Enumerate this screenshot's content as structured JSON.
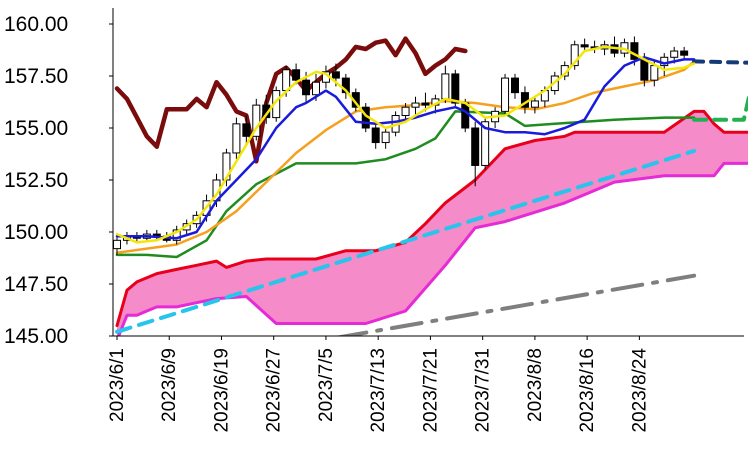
{
  "chart_data": {
    "type": "candlestick-ichimoku",
    "ylim": [
      145.0,
      160.0
    ],
    "y_ticks": [
      "160.00",
      "157.50",
      "155.00",
      "152.50",
      "150.00",
      "147.50",
      "145.00"
    ],
    "x_tick_labels": [
      "2023/6/1",
      "2023/6/9",
      "2023/6/19",
      "2023/6/27",
      "2023/7/5",
      "2023/7/13",
      "2023/7/21",
      "2023/7/31",
      "2023/8/8",
      "2023/8/16",
      "2023/8/24"
    ],
    "grid": false,
    "legend": "none",
    "colors": {
      "cloud_fill": "#f58bc8",
      "senkou_a": "#e8001a",
      "senkou_b": "#e62ad6",
      "chikou": "#7b0c0c",
      "ma_fast": "#f5e60a",
      "tenkan": "#1a1adc",
      "ma_mid": "#f5a01e",
      "kijun": "#1e8c1e",
      "trend_up": "#27c4ec",
      "trend_low": "#7f7f7f",
      "proj_blue": "#163a78",
      "proj_green": "#22b050"
    },
    "candles": [
      [
        0,
        149.2,
        149.8,
        148.9,
        149.6
      ],
      [
        1,
        149.6,
        150.0,
        149.4,
        149.8
      ],
      [
        2,
        149.8,
        150.0,
        149.5,
        149.7
      ],
      [
        3,
        149.7,
        150.1,
        149.5,
        149.9
      ],
      [
        4,
        149.9,
        150.1,
        149.6,
        149.8
      ],
      [
        5,
        149.8,
        150.0,
        149.5,
        149.6
      ],
      [
        6,
        149.6,
        150.3,
        149.4,
        150.1
      ],
      [
        7,
        150.1,
        150.6,
        149.8,
        150.4
      ],
      [
        8,
        150.4,
        151.0,
        150.2,
        150.8
      ],
      [
        9,
        150.8,
        151.8,
        150.5,
        151.5
      ],
      [
        10,
        151.5,
        152.8,
        151.2,
        152.5
      ],
      [
        11,
        152.5,
        154.0,
        152.2,
        153.8
      ],
      [
        12,
        153.8,
        155.5,
        153.5,
        155.2
      ],
      [
        13,
        155.2,
        155.6,
        154.2,
        154.6
      ],
      [
        14,
        154.6,
        156.4,
        154.4,
        156.1
      ],
      [
        15,
        156.1,
        156.6,
        155.2,
        155.5
      ],
      [
        16,
        155.5,
        157.0,
        155.3,
        156.8
      ],
      [
        17,
        156.8,
        158.0,
        156.5,
        157.8
      ],
      [
        18,
        157.8,
        158.1,
        157.1,
        157.3
      ],
      [
        19,
        157.3,
        157.7,
        156.2,
        156.6
      ],
      [
        20,
        156.6,
        157.6,
        156.3,
        157.2
      ],
      [
        21,
        157.2,
        158.0,
        156.9,
        157.7
      ],
      [
        22,
        157.7,
        158.1,
        157.0,
        157.4
      ],
      [
        23,
        157.4,
        157.6,
        156.4,
        156.7
      ],
      [
        24,
        156.7,
        156.9,
        155.8,
        156.0
      ],
      [
        25,
        156.0,
        156.2,
        154.8,
        155.0
      ],
      [
        26,
        155.0,
        155.2,
        154.0,
        154.3
      ],
      [
        27,
        154.3,
        155.0,
        154.0,
        154.8
      ],
      [
        28,
        154.8,
        155.8,
        154.6,
        155.6
      ],
      [
        29,
        155.6,
        156.2,
        155.3,
        156.0
      ],
      [
        30,
        156.0,
        156.5,
        155.6,
        156.2
      ],
      [
        31,
        156.2,
        156.7,
        155.8,
        156.1
      ],
      [
        32,
        156.1,
        156.6,
        155.7,
        156.4
      ],
      [
        33,
        156.4,
        158.0,
        156.2,
        157.6
      ],
      [
        34,
        157.6,
        157.8,
        156.0,
        156.2
      ],
      [
        35,
        156.2,
        156.4,
        154.8,
        155.0
      ],
      [
        36,
        155.0,
        155.3,
        152.2,
        153.2
      ],
      [
        37,
        153.2,
        155.5,
        153.0,
        155.3
      ],
      [
        38,
        155.3,
        156.0,
        155.0,
        155.8
      ],
      [
        39,
        155.8,
        157.6,
        155.6,
        157.4
      ],
      [
        40,
        157.4,
        157.6,
        156.4,
        156.7
      ],
      [
        41,
        156.7,
        157.0,
        155.7,
        156.0
      ],
      [
        42,
        156.0,
        156.5,
        155.7,
        156.3
      ],
      [
        43,
        156.3,
        157.0,
        156.0,
        156.8
      ],
      [
        44,
        156.8,
        157.7,
        156.6,
        157.5
      ],
      [
        45,
        157.5,
        158.2,
        157.3,
        158.0
      ],
      [
        46,
        158.0,
        159.2,
        157.8,
        159.0
      ],
      [
        47,
        159.0,
        159.3,
        158.7,
        158.9
      ],
      [
        48,
        158.9,
        159.2,
        158.6,
        158.8
      ],
      [
        49,
        158.8,
        159.2,
        158.5,
        159.0
      ],
      [
        50,
        159.0,
        159.4,
        158.4,
        158.6
      ],
      [
        51,
        158.6,
        159.3,
        158.4,
        159.1
      ],
      [
        52,
        159.1,
        159.4,
        158.0,
        158.3
      ],
      [
        53,
        158.3,
        158.6,
        157.0,
        157.3
      ],
      [
        54,
        157.3,
        158.2,
        157.0,
        158.0
      ],
      [
        55,
        158.0,
        158.6,
        157.5,
        158.4
      ],
      [
        56,
        158.4,
        158.9,
        158.1,
        158.7
      ],
      [
        57,
        158.7,
        158.9,
        158.3,
        158.5
      ]
    ],
    "series": [
      {
        "key": "senkou_b",
        "dash": "none",
        "points": [
          [
            0,
            144.8
          ],
          [
            1,
            146.0
          ],
          [
            2,
            146.0
          ],
          [
            3,
            146.2
          ],
          [
            4,
            146.4
          ],
          [
            6,
            146.4
          ],
          [
            8,
            146.6
          ],
          [
            10,
            146.8
          ],
          [
            13,
            146.9
          ],
          [
            16,
            145.6
          ],
          [
            20,
            145.6
          ],
          [
            25,
            145.6
          ],
          [
            29,
            146.2
          ],
          [
            33,
            148.4
          ],
          [
            36,
            150.2
          ],
          [
            39,
            150.5
          ],
          [
            45,
            151.4
          ],
          [
            50,
            152.4
          ],
          [
            55,
            152.7
          ],
          [
            60,
            152.7
          ],
          [
            61,
            153.3
          ],
          [
            63,
            153.3
          ],
          [
            67,
            153.3
          ]
        ]
      },
      {
        "key": "senkou_a",
        "dash": "none",
        "points": [
          [
            0,
            145.5
          ],
          [
            1,
            147.2
          ],
          [
            2,
            147.6
          ],
          [
            4,
            148.0
          ],
          [
            6,
            148.2
          ],
          [
            8,
            148.4
          ],
          [
            10,
            148.6
          ],
          [
            11,
            148.3
          ],
          [
            13,
            148.6
          ],
          [
            15,
            148.7
          ],
          [
            20,
            148.7
          ],
          [
            23,
            149.1
          ],
          [
            26,
            149.1
          ],
          [
            29,
            149.5
          ],
          [
            31,
            150.4
          ],
          [
            33,
            151.4
          ],
          [
            36,
            152.5
          ],
          [
            39,
            154.0
          ],
          [
            42,
            154.4
          ],
          [
            45,
            154.6
          ],
          [
            46,
            154.8
          ],
          [
            49,
            154.8
          ],
          [
            55,
            154.8
          ],
          [
            58,
            155.8
          ],
          [
            59,
            155.8
          ],
          [
            60,
            155.2
          ],
          [
            61,
            154.8
          ],
          [
            63,
            154.8
          ],
          [
            67,
            154.8
          ]
        ]
      },
      {
        "key": "kijun",
        "dash": "none",
        "points": [
          [
            0,
            148.9
          ],
          [
            3,
            148.9
          ],
          [
            6,
            148.8
          ],
          [
            9,
            149.6
          ],
          [
            11,
            151.0
          ],
          [
            14,
            152.3
          ],
          [
            18,
            153.3
          ],
          [
            24,
            153.3
          ],
          [
            27,
            153.5
          ],
          [
            30,
            154.0
          ],
          [
            32,
            154.5
          ],
          [
            34,
            155.8
          ],
          [
            39,
            155.7
          ],
          [
            41,
            155.1
          ],
          [
            44,
            155.2
          ],
          [
            47,
            155.3
          ],
          [
            50,
            155.4
          ],
          [
            55,
            155.5
          ],
          [
            58,
            155.5
          ]
        ]
      },
      {
        "key": "ma_mid",
        "dash": "none",
        "points": [
          [
            0,
            149.0
          ],
          [
            3,
            149.2
          ],
          [
            6,
            149.4
          ],
          [
            9,
            150.0
          ],
          [
            12,
            151.0
          ],
          [
            15,
            152.4
          ],
          [
            18,
            153.8
          ],
          [
            21,
            154.9
          ],
          [
            24,
            155.8
          ],
          [
            27,
            156.0
          ],
          [
            30,
            156.1
          ],
          [
            33,
            156.3
          ],
          [
            36,
            156.2
          ],
          [
            39,
            156.0
          ],
          [
            42,
            155.9
          ],
          [
            45,
            156.2
          ],
          [
            48,
            156.7
          ],
          [
            51,
            157.0
          ],
          [
            54,
            157.3
          ],
          [
            57,
            157.8
          ],
          [
            58,
            158.2
          ]
        ]
      },
      {
        "key": "tenkan",
        "dash": "none",
        "points": [
          [
            0,
            149.8
          ],
          [
            3,
            149.8
          ],
          [
            6,
            149.7
          ],
          [
            8,
            150.0
          ],
          [
            10,
            151.5
          ],
          [
            12,
            152.5
          ],
          [
            14,
            153.5
          ],
          [
            16,
            155.0
          ],
          [
            18,
            156.0
          ],
          [
            19,
            156.2
          ],
          [
            21,
            156.8
          ],
          [
            22,
            156.5
          ],
          [
            24,
            155.3
          ],
          [
            26,
            155.2
          ],
          [
            28,
            155.3
          ],
          [
            30,
            155.5
          ],
          [
            32,
            155.8
          ],
          [
            34,
            156.0
          ],
          [
            35,
            155.8
          ],
          [
            37,
            155.0
          ],
          [
            39,
            154.8
          ],
          [
            41,
            154.8
          ],
          [
            43,
            154.7
          ],
          [
            45,
            155.0
          ],
          [
            47,
            155.4
          ],
          [
            49,
            157.0
          ],
          [
            51,
            158.0
          ],
          [
            53,
            158.4
          ],
          [
            55,
            158.1
          ],
          [
            57,
            158.3
          ],
          [
            58,
            158.3
          ]
        ]
      },
      {
        "key": "ma_fast",
        "dash": "none",
        "points": [
          [
            0,
            149.9
          ],
          [
            2,
            149.5
          ],
          [
            4,
            149.6
          ],
          [
            6,
            150.0
          ],
          [
            8,
            150.6
          ],
          [
            10,
            151.8
          ],
          [
            12,
            153.4
          ],
          [
            14,
            155.0
          ],
          [
            16,
            156.3
          ],
          [
            18,
            157.2
          ],
          [
            20,
            157.7
          ],
          [
            21,
            157.6
          ],
          [
            23,
            156.8
          ],
          [
            25,
            155.6
          ],
          [
            27,
            155.0
          ],
          [
            29,
            155.3
          ],
          [
            31,
            155.9
          ],
          [
            33,
            156.4
          ],
          [
            35,
            156.2
          ],
          [
            37,
            155.5
          ],
          [
            39,
            155.6
          ],
          [
            41,
            156.2
          ],
          [
            43,
            156.8
          ],
          [
            45,
            157.6
          ],
          [
            47,
            158.7
          ],
          [
            49,
            158.9
          ],
          [
            51,
            158.8
          ],
          [
            53,
            158.3
          ],
          [
            55,
            157.8
          ],
          [
            57,
            157.9
          ],
          [
            58,
            158.1
          ]
        ]
      },
      {
        "key": "chikou",
        "dash": "none",
        "points": [
          [
            0,
            156.9
          ],
          [
            1,
            156.4
          ],
          [
            2,
            155.5
          ],
          [
            3,
            154.6
          ],
          [
            4,
            154.1
          ],
          [
            5,
            155.9
          ],
          [
            6,
            155.9
          ],
          [
            7,
            155.9
          ],
          [
            8,
            156.4
          ],
          [
            9,
            156.0
          ],
          [
            10,
            157.2
          ],
          [
            11,
            156.6
          ],
          [
            12,
            155.8
          ],
          [
            13,
            155.6
          ],
          [
            14,
            153.4
          ],
          [
            15,
            156.2
          ],
          [
            16,
            157.6
          ],
          [
            17,
            157.9
          ],
          [
            18,
            157.4
          ],
          [
            19,
            156.8
          ],
          [
            20,
            157.2
          ],
          [
            21,
            157.6
          ],
          [
            22,
            157.9
          ],
          [
            23,
            158.3
          ],
          [
            24,
            158.9
          ],
          [
            25,
            158.8
          ],
          [
            26,
            159.1
          ],
          [
            27,
            159.2
          ],
          [
            28,
            158.5
          ],
          [
            29,
            159.3
          ],
          [
            30,
            158.6
          ],
          [
            31,
            157.6
          ],
          [
            32,
            158.0
          ],
          [
            33,
            158.3
          ],
          [
            34,
            158.8
          ],
          [
            35,
            158.7
          ]
        ]
      },
      {
        "key": "trend_up",
        "dash": "14 9",
        "points": [
          [
            0,
            145.2
          ],
          [
            58,
            153.9
          ]
        ]
      },
      {
        "key": "trend_low",
        "dash": "30 11 4 11",
        "points": [
          [
            11,
            144.0
          ],
          [
            58,
            147.9
          ]
        ]
      },
      {
        "key": "proj_blue",
        "dash": "9 8",
        "points": [
          [
            58,
            158.2
          ],
          [
            67,
            158.1
          ]
        ]
      },
      {
        "key": "proj_green",
        "dash": "12 8",
        "points": [
          [
            58,
            155.4
          ],
          [
            63,
            155.4
          ],
          [
            64,
            157.5
          ],
          [
            67,
            157.5
          ]
        ]
      }
    ]
  }
}
